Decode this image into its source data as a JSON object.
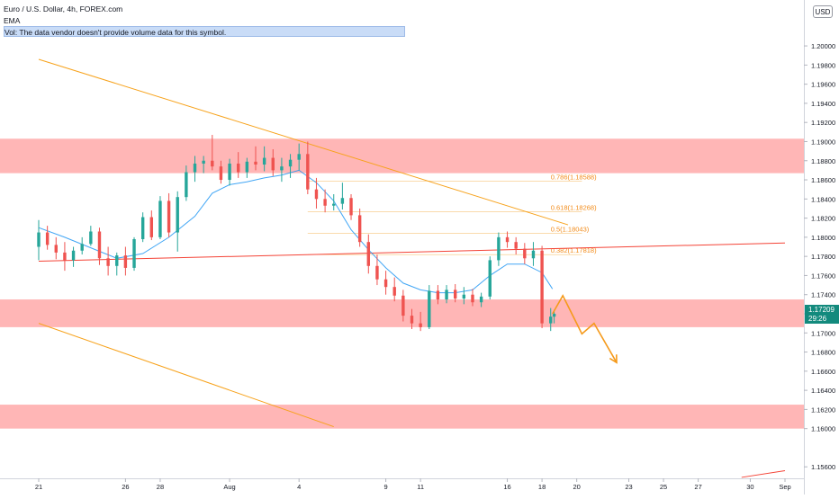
{
  "header": {
    "symbol_line": "Euro / U.S. Dollar, 4h, FOREX.com",
    "ema_label": "EMA",
    "vol_note": "Vol: The data vendor doesn't provide volume data for this symbol."
  },
  "currency_button": "USD",
  "last_price": {
    "value": "1.17209",
    "countdown": "29:26"
  },
  "colors": {
    "zone": "#ff9e9e",
    "bull": "#26a69a",
    "bear": "#ef5350",
    "ema": "#2196f3",
    "trend": "#f7a21b",
    "sr_line": "#f44336",
    "price_tag": "#138a7d"
  },
  "chart_data": {
    "type": "candlestick",
    "title": "Euro / U.S. Dollar, 4h, FOREX.com",
    "y_axis": {
      "range": [
        1.1548,
        1.2048
      ],
      "ticks": [
        "1.20000",
        "1.19800",
        "1.19600",
        "1.19400",
        "1.19200",
        "1.19000",
        "1.18800",
        "1.18600",
        "1.18400",
        "1.18200",
        "1.18000",
        "1.17800",
        "1.17600",
        "1.17400",
        "1.17200",
        "1.17000",
        "1.16800",
        "1.16600",
        "1.16400",
        "1.16200",
        "1.16000",
        "1.15600"
      ]
    },
    "x_axis": {
      "range_days": [
        -11,
        32
      ],
      "ticks": [
        {
          "label": "21",
          "day": -11
        },
        {
          "label": "26",
          "day": -6
        },
        {
          "label": "28",
          "day": -4
        },
        {
          "label": "Aug",
          "day": 0
        },
        {
          "label": "4",
          "day": 4
        },
        {
          "label": "9",
          "day": 9
        },
        {
          "label": "11",
          "day": 11
        },
        {
          "label": "16",
          "day": 16
        },
        {
          "label": "18",
          "day": 18
        },
        {
          "label": "20",
          "day": 20
        },
        {
          "label": "23",
          "day": 23
        },
        {
          "label": "25",
          "day": 25
        },
        {
          "label": "27",
          "day": 27
        },
        {
          "label": "30",
          "day": 30
        },
        {
          "label": "Sep",
          "day": 32
        }
      ]
    },
    "zones": [
      {
        "from": 1.1867,
        "to": 1.1903
      },
      {
        "from": 1.1706,
        "to": 1.1735
      },
      {
        "from": 1.16,
        "to": 1.1625
      }
    ],
    "fib_levels": [
      {
        "label": "0.786(1.18588)",
        "value": 1.18588
      },
      {
        "label": "0.618(1.18268)",
        "value": 1.18268
      },
      {
        "label": "0.5(1.18043)",
        "value": 1.18043
      },
      {
        "label": "0.382(1.17818)",
        "value": 1.17818
      }
    ],
    "ema_path": [
      [
        -11,
        1.181
      ],
      [
        -9.5,
        1.18
      ],
      [
        -8,
        1.1789
      ],
      [
        -6.5,
        1.1778
      ],
      [
        -5,
        1.1783
      ],
      [
        -3.5,
        1.18
      ],
      [
        -2,
        1.1822
      ],
      [
        -1,
        1.1846
      ],
      [
        0,
        1.1855
      ],
      [
        1,
        1.1858
      ],
      [
        2,
        1.1862
      ],
      [
        3,
        1.1865
      ],
      [
        4,
        1.187
      ],
      [
        5,
        1.1857
      ],
      [
        6,
        1.1838
      ],
      [
        7,
        1.1808
      ],
      [
        8,
        1.1787
      ],
      [
        9,
        1.1768
      ],
      [
        10,
        1.1752
      ],
      [
        11,
        1.1745
      ],
      [
        12,
        1.1742
      ],
      [
        13,
        1.1742
      ],
      [
        14,
        1.1745
      ],
      [
        15,
        1.176
      ],
      [
        16,
        1.1772
      ],
      [
        17,
        1.1772
      ],
      [
        18,
        1.1763
      ],
      [
        18.6,
        1.1746
      ]
    ],
    "trend_lines": [
      {
        "points": [
          [
            -11,
            1.1986
          ],
          [
            19.5,
            1.1813
          ]
        ],
        "style": "descending resistance"
      },
      {
        "points": [
          [
            -11,
            1.171
          ],
          [
            6,
            1.1602
          ]
        ],
        "style": "descending support"
      },
      {
        "points": [
          [
            -11,
            1.1775
          ],
          [
            32,
            1.1794
          ]
        ],
        "style": "support/resistance"
      },
      {
        "points": [
          [
            29.5,
            1.1549
          ],
          [
            32,
            1.1556
          ]
        ],
        "style": "support/resistance"
      }
    ],
    "projection": [
      [
        18.6,
        1.172
      ],
      [
        19.2,
        1.1739
      ],
      [
        20.3,
        1.1699
      ],
      [
        21,
        1.171
      ],
      [
        22.3,
        1.1669
      ]
    ],
    "candles": [
      [
        -11.0,
        1.179,
        1.1818,
        1.1776,
        1.1805
      ],
      [
        -10.5,
        1.1805,
        1.1812,
        1.1787,
        1.1792
      ],
      [
        -10.0,
        1.1792,
        1.18,
        1.1777,
        1.1784
      ],
      [
        -9.5,
        1.1784,
        1.1795,
        1.1765,
        1.1776
      ],
      [
        -9.0,
        1.1776,
        1.179,
        1.1769,
        1.1786
      ],
      [
        -8.5,
        1.1786,
        1.18,
        1.1782,
        1.1793
      ],
      [
        -8.0,
        1.1793,
        1.1812,
        1.1791,
        1.1806
      ],
      [
        -7.5,
        1.1806,
        1.181,
        1.1771,
        1.1778
      ],
      [
        -7.0,
        1.1778,
        1.179,
        1.176,
        1.177
      ],
      [
        -6.5,
        1.177,
        1.1784,
        1.176,
        1.1781
      ],
      [
        -6.0,
        1.1781,
        1.179,
        1.176,
        1.1768
      ],
      [
        -5.5,
        1.1768,
        1.18,
        1.1765,
        1.1798
      ],
      [
        -5.0,
        1.1798,
        1.1826,
        1.1795,
        1.1821
      ],
      [
        -4.5,
        1.1821,
        1.1828,
        1.1797,
        1.18
      ],
      [
        -4.0,
        1.18,
        1.1843,
        1.1798,
        1.1838
      ],
      [
        -3.5,
        1.1838,
        1.1846,
        1.18,
        1.1805
      ],
      [
        -3.0,
        1.1805,
        1.1848,
        1.1785,
        1.1842
      ],
      [
        -2.5,
        1.1842,
        1.1875,
        1.1838,
        1.1868
      ],
      [
        -2.0,
        1.1868,
        1.1885,
        1.1858,
        1.1877
      ],
      [
        -1.5,
        1.1877,
        1.1885,
        1.1867,
        1.188
      ],
      [
        -1.0,
        1.188,
        1.1907,
        1.187,
        1.1874
      ],
      [
        -0.5,
        1.1874,
        1.188,
        1.1856,
        1.186
      ],
      [
        0.0,
        1.186,
        1.1882,
        1.1854,
        1.1877
      ],
      [
        0.5,
        1.1877,
        1.1889,
        1.1862,
        1.1868
      ],
      [
        1.0,
        1.1868,
        1.1883,
        1.1862,
        1.1879
      ],
      [
        1.5,
        1.1879,
        1.1895,
        1.187,
        1.1876
      ],
      [
        2.0,
        1.1876,
        1.1895,
        1.1869,
        1.1883
      ],
      [
        2.5,
        1.1883,
        1.1892,
        1.1864,
        1.187
      ],
      [
        3.0,
        1.187,
        1.1883,
        1.1858,
        1.1874
      ],
      [
        3.5,
        1.1874,
        1.1887,
        1.1862,
        1.1881
      ],
      [
        4.0,
        1.1881,
        1.1898,
        1.187,
        1.1887
      ],
      [
        4.5,
        1.1887,
        1.19,
        1.1845,
        1.185
      ],
      [
        5.0,
        1.185,
        1.1862,
        1.183,
        1.184
      ],
      [
        5.5,
        1.184,
        1.185,
        1.1826,
        1.1833
      ],
      [
        6.0,
        1.1833,
        1.1845,
        1.1828,
        1.1835
      ],
      [
        6.5,
        1.1835,
        1.1857,
        1.1829,
        1.1841
      ],
      [
        7.0,
        1.1841,
        1.1845,
        1.1818,
        1.1823
      ],
      [
        7.5,
        1.1823,
        1.183,
        1.179,
        1.1795
      ],
      [
        8.0,
        1.1795,
        1.1803,
        1.1762,
        1.177
      ],
      [
        8.5,
        1.177,
        1.1782,
        1.175,
        1.1756
      ],
      [
        9.0,
        1.1756,
        1.1765,
        1.174,
        1.1748
      ],
      [
        9.5,
        1.1748,
        1.1758,
        1.1733,
        1.1739
      ],
      [
        10.0,
        1.1739,
        1.1745,
        1.1712,
        1.1718
      ],
      [
        10.5,
        1.1718,
        1.1725,
        1.1704,
        1.171
      ],
      [
        11.0,
        1.171,
        1.1722,
        1.1702,
        1.1706
      ],
      [
        11.5,
        1.1706,
        1.175,
        1.1704,
        1.1744
      ],
      [
        12.0,
        1.1744,
        1.175,
        1.173,
        1.1735
      ],
      [
        12.5,
        1.1735,
        1.175,
        1.1731,
        1.1745
      ],
      [
        13.0,
        1.1745,
        1.1751,
        1.1732,
        1.1736
      ],
      [
        13.5,
        1.1736,
        1.1748,
        1.173,
        1.174
      ],
      [
        14.0,
        1.174,
        1.1746,
        1.1728,
        1.1732
      ],
      [
        14.5,
        1.1732,
        1.1742,
        1.1727,
        1.1738
      ],
      [
        15.0,
        1.1738,
        1.178,
        1.1735,
        1.1776
      ],
      [
        15.5,
        1.1776,
        1.1805,
        1.177,
        1.18
      ],
      [
        16.0,
        1.18,
        1.1806,
        1.1789,
        1.1795
      ],
      [
        16.5,
        1.1795,
        1.18,
        1.1782,
        1.1788
      ],
      [
        17.0,
        1.1788,
        1.1794,
        1.1772,
        1.1778
      ],
      [
        17.5,
        1.1778,
        1.1795,
        1.177,
        1.1786
      ],
      [
        18.0,
        1.1786,
        1.1791,
        1.1705,
        1.171
      ],
      [
        18.5,
        1.171,
        1.1726,
        1.1702,
        1.1717
      ],
      [
        18.7,
        1.1717,
        1.1724,
        1.171,
        1.172
      ]
    ]
  }
}
